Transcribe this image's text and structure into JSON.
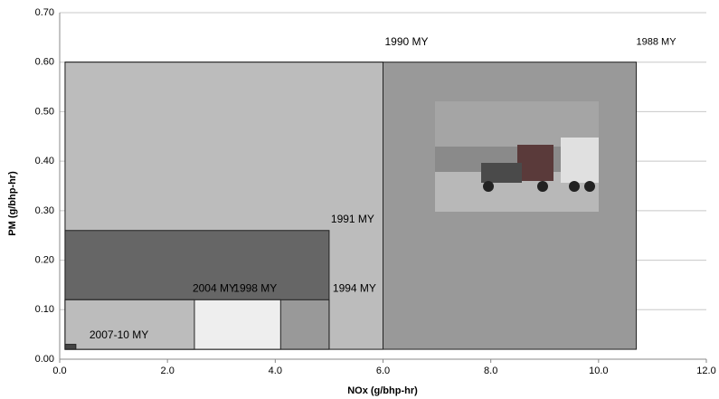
{
  "chart_data": {
    "type": "rect",
    "x_label": "NOx (g/bhp-hr)",
    "y_label": "PM (g/bhp-hr)",
    "xlim": [
      0,
      12
    ],
    "ylim": [
      0,
      0.7
    ],
    "xticks": [
      {
        "value": 0,
        "label": "0.0"
      },
      {
        "value": 2,
        "label": "2.0"
      },
      {
        "value": 4,
        "label": "4.0"
      },
      {
        "value": 6,
        "label": "6.0"
      },
      {
        "value": 8,
        "label": "8.0"
      },
      {
        "value": 10,
        "label": "10.0"
      },
      {
        "value": 12,
        "label": "12.0"
      }
    ],
    "yticks": [
      {
        "value": 0,
        "label": "0.00"
      },
      {
        "value": 0.1,
        "label": "0.10"
      },
      {
        "value": 0.2,
        "label": "0.20"
      },
      {
        "value": 0.3,
        "label": "0.30"
      },
      {
        "value": 0.4,
        "label": "0.40"
      },
      {
        "value": 0.5,
        "label": "0.50"
      },
      {
        "value": 0.6,
        "label": "0.60"
      },
      {
        "value": 0.7,
        "label": "0.70"
      }
    ],
    "grid": true,
    "series": [
      {
        "name": "1988 MY",
        "color": "#999999",
        "x": [
          0.1,
          10.7
        ],
        "y": [
          0.02,
          0.6
        ]
      },
      {
        "name": "1990 MY",
        "color": "#bcbcbc",
        "x": [
          0.1,
          6.0
        ],
        "y": [
          0.02,
          0.6
        ]
      },
      {
        "name": "1991 MY",
        "color": "#666666",
        "x": [
          0.1,
          5.0
        ],
        "y": [
          0.02,
          0.26
        ]
      },
      {
        "name": "1994 MY",
        "color": "#999999",
        "x": [
          0.1,
          5.0
        ],
        "y": [
          0.02,
          0.12
        ]
      },
      {
        "name": "1998 MY",
        "color": "#eeeeee",
        "x": [
          0.1,
          4.1
        ],
        "y": [
          0.02,
          0.12
        ]
      },
      {
        "name": "2004 MY",
        "color": "#bcbcbc",
        "x": [
          0.1,
          2.5
        ],
        "y": [
          0.02,
          0.12
        ]
      },
      {
        "name": "2007-10 MY",
        "color": "#444444",
        "x": [
          0.1,
          0.3
        ],
        "y": [
          0.02,
          0.03
        ]
      }
    ]
  }
}
